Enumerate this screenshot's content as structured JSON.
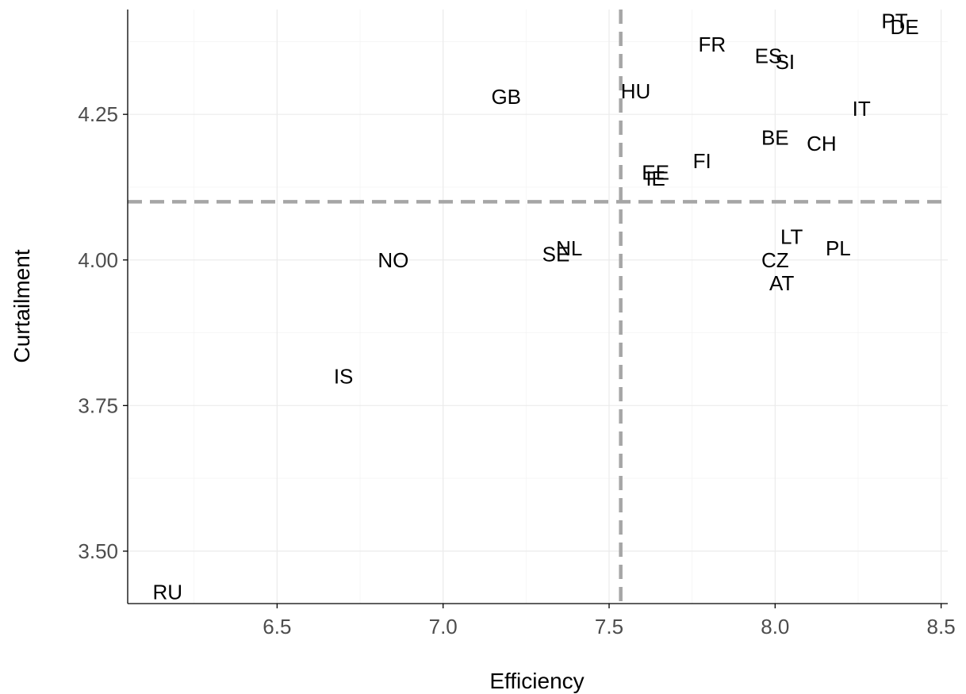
{
  "chart_data": {
    "type": "scatter",
    "title": "",
    "xlabel": "Efficiency",
    "ylabel": "Curtailment",
    "xlim": [
      6.05,
      8.52
    ],
    "ylim": [
      3.41,
      4.43
    ],
    "x_ticks": [
      6.5,
      7.0,
      7.5,
      8.0,
      8.5
    ],
    "x_tick_labels": [
      "6.5",
      "7.0",
      "7.5",
      "8.0",
      "8.5"
    ],
    "y_ticks": [
      3.5,
      3.75,
      4.0,
      4.25
    ],
    "y_tick_labels": [
      "3.50",
      "3.75",
      "4.00",
      "4.25"
    ],
    "grid": true,
    "legend": "none",
    "reference_lines": {
      "x": 7.535,
      "y": 4.1,
      "style": "dashed",
      "color": "#a6a6a6"
    },
    "points": [
      {
        "label": "PT",
        "x": 8.36,
        "y": 4.41
      },
      {
        "label": "DE",
        "x": 8.39,
        "y": 4.4
      },
      {
        "label": "FR",
        "x": 7.81,
        "y": 4.37
      },
      {
        "label": "ES",
        "x": 7.98,
        "y": 4.35
      },
      {
        "label": "SI",
        "x": 8.03,
        "y": 4.34
      },
      {
        "label": "GB",
        "x": 7.19,
        "y": 4.28
      },
      {
        "label": "HU",
        "x": 7.58,
        "y": 4.29
      },
      {
        "label": "IT",
        "x": 8.26,
        "y": 4.26
      },
      {
        "label": "BE",
        "x": 8.0,
        "y": 4.21
      },
      {
        "label": "CH",
        "x": 8.14,
        "y": 4.2
      },
      {
        "label": "FI",
        "x": 7.78,
        "y": 4.17
      },
      {
        "label": "EE",
        "x": 7.64,
        "y": 4.15
      },
      {
        "label": "IE",
        "x": 7.64,
        "y": 4.14
      },
      {
        "label": "LT",
        "x": 8.05,
        "y": 4.04
      },
      {
        "label": "PL",
        "x": 8.19,
        "y": 4.02
      },
      {
        "label": "NL",
        "x": 7.38,
        "y": 4.02
      },
      {
        "label": "SE",
        "x": 7.34,
        "y": 4.01
      },
      {
        "label": "NO",
        "x": 6.85,
        "y": 4.0
      },
      {
        "label": "CZ",
        "x": 8.0,
        "y": 4.0
      },
      {
        "label": "AT",
        "x": 8.02,
        "y": 3.96
      },
      {
        "label": "IS",
        "x": 6.7,
        "y": 3.8
      },
      {
        "label": "RU",
        "x": 6.17,
        "y": 3.43
      }
    ]
  }
}
